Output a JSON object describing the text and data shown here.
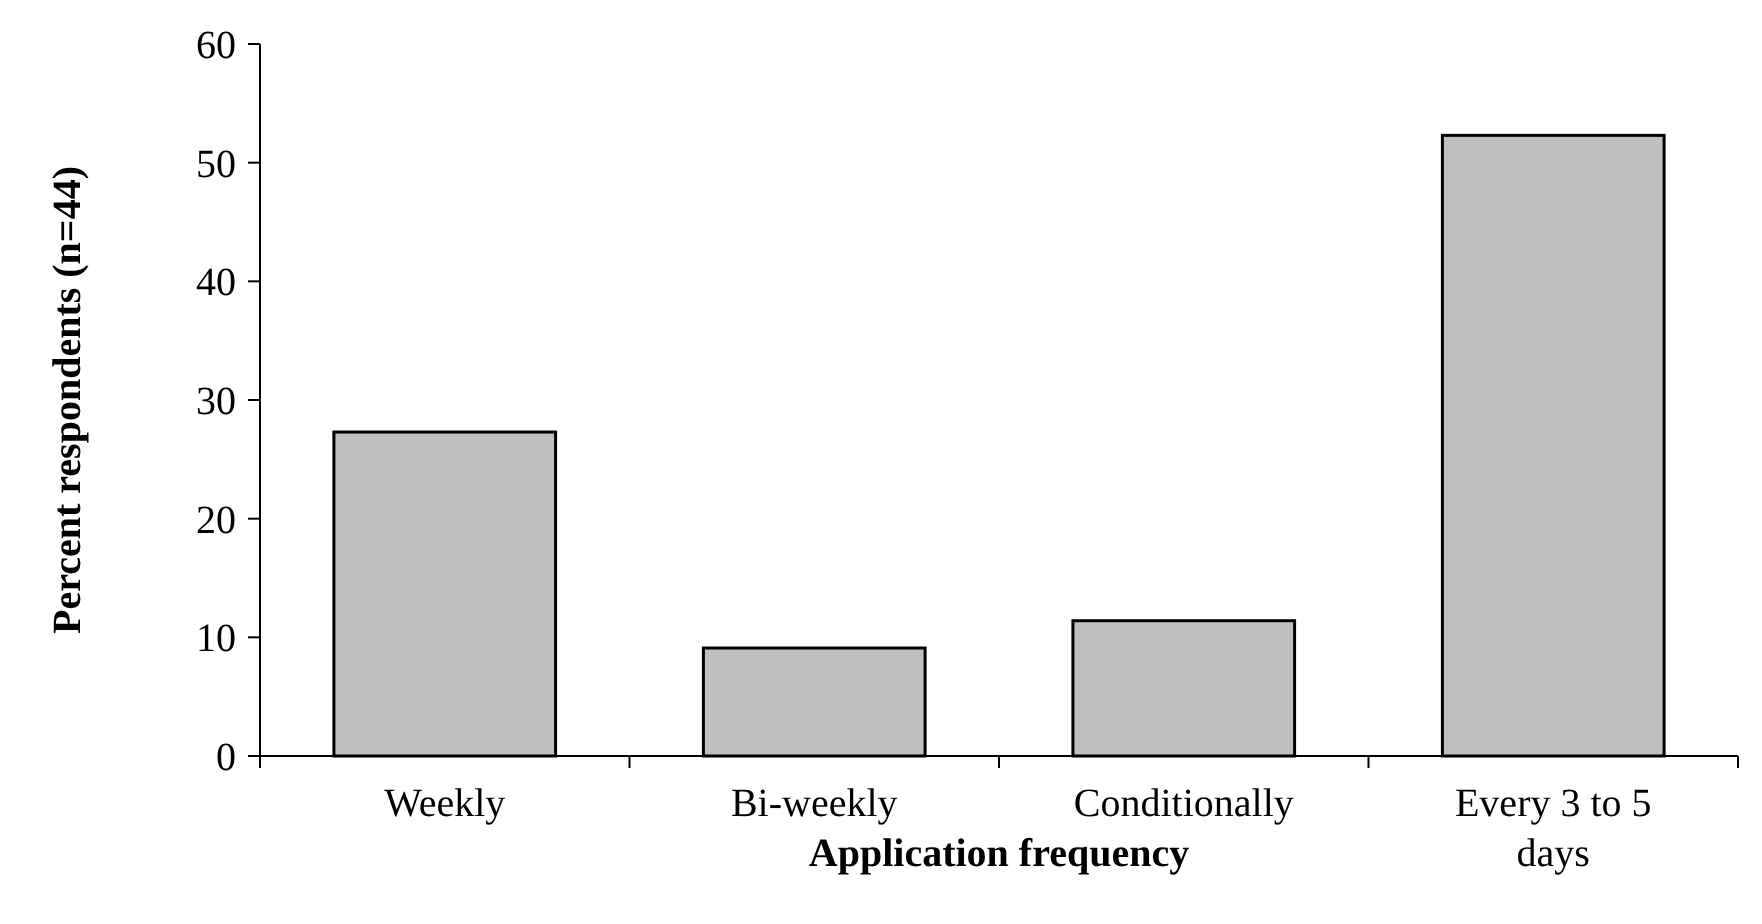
{
  "chart_data": {
    "type": "bar",
    "xlabel": "Application frequency",
    "ylabel": "Percent respondents (n=44)",
    "categories": [
      "Weekly",
      "Bi-weekly",
      "Conditionally",
      "Every 3 to 5 days"
    ],
    "values": [
      27.3,
      9.1,
      11.4,
      52.3
    ],
    "color": "#bfbfbf",
    "ylim": [
      0,
      60
    ],
    "yticks": [
      0,
      10,
      20,
      30,
      40,
      50,
      60
    ],
    "grid": false
  }
}
